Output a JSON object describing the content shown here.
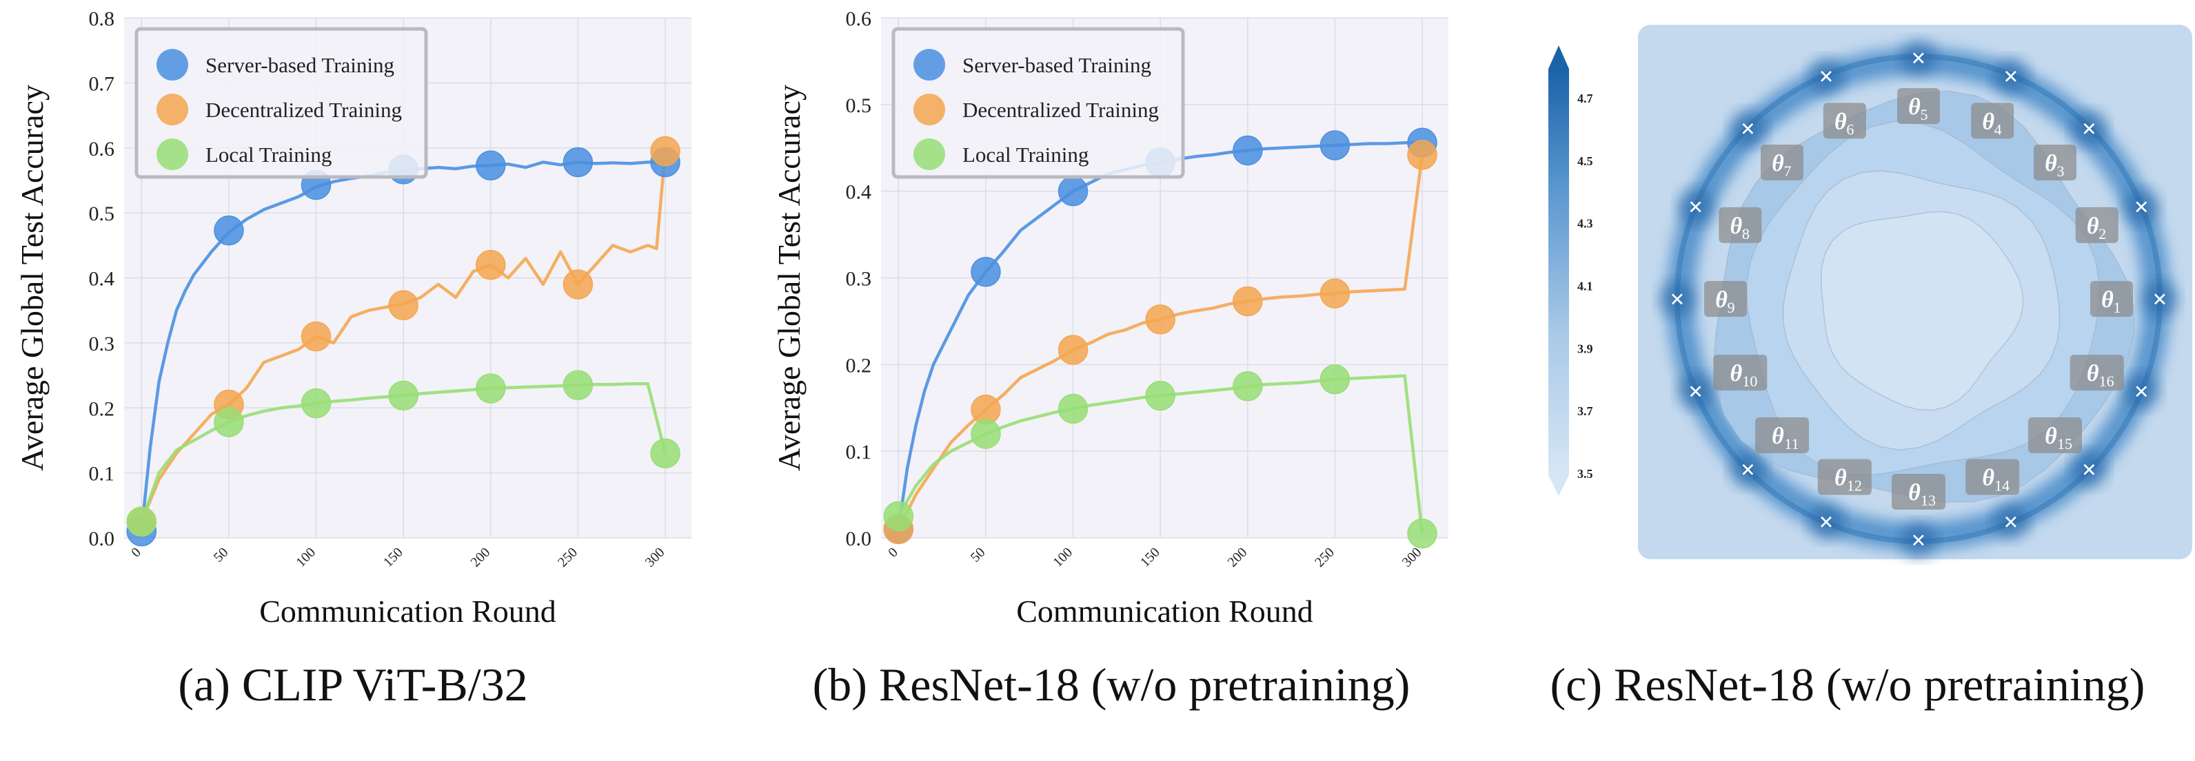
{
  "captions": {
    "a": "(a) CLIP ViT-B/32",
    "b": "(b) ResNet-18 (w/o pretraining)",
    "c": "(c) ResNet-18 (w/o pretraining)"
  },
  "colors": {
    "server": "#4a8fe0",
    "decentralized": "#f5a650",
    "local": "#98de74",
    "plot_bg": "#f2f2f8",
    "contour_dark": "#1b63a8",
    "contour_light": "#d6e6f5"
  },
  "chart_data": [
    {
      "id": "a",
      "type": "line",
      "title": "",
      "xlabel": "Communication Round",
      "ylabel": "Average Global Test Accuracy",
      "xlim": [
        -10,
        315
      ],
      "ylim": [
        0,
        0.8
      ],
      "xticks": [
        0,
        50,
        100,
        150,
        200,
        250,
        300
      ],
      "yticks": [
        0.0,
        0.1,
        0.2,
        0.3,
        0.4,
        0.5,
        0.6,
        0.7,
        0.8
      ],
      "xtick_labels": [
        "0",
        "50",
        "100",
        "150",
        "200",
        "250",
        "300"
      ],
      "ytick_labels": [
        "0.0",
        "0.1",
        "0.2",
        "0.3",
        "0.4",
        "0.5",
        "0.6",
        "0.7",
        "0.8"
      ],
      "grid": true,
      "legend": "top-left",
      "series": [
        {
          "name": "Server-based Training",
          "color_key": "server",
          "x": [
            0,
            5,
            10,
            15,
            20,
            25,
            30,
            40,
            50,
            60,
            70,
            80,
            90,
            100,
            110,
            120,
            130,
            140,
            150,
            160,
            170,
            180,
            190,
            200,
            210,
            220,
            230,
            240,
            250,
            260,
            270,
            280,
            290,
            300
          ],
          "y": [
            0.01,
            0.14,
            0.24,
            0.3,
            0.35,
            0.38,
            0.405,
            0.44,
            0.47,
            0.49,
            0.505,
            0.515,
            0.525,
            0.54,
            0.548,
            0.553,
            0.557,
            0.562,
            0.565,
            0.568,
            0.57,
            0.568,
            0.572,
            0.573,
            0.575,
            0.57,
            0.578,
            0.574,
            0.578,
            0.576,
            0.577,
            0.576,
            0.578,
            0.578
          ],
          "marker_x": [
            0,
            50,
            100,
            150,
            200,
            250,
            300
          ],
          "marker_y": [
            0.01,
            0.473,
            0.543,
            0.567,
            0.573,
            0.578,
            0.578
          ]
        },
        {
          "name": "Decentralized Training",
          "color_key": "decentralized",
          "x": [
            0,
            10,
            20,
            30,
            40,
            50,
            60,
            70,
            80,
            90,
            100,
            110,
            120,
            130,
            140,
            150,
            160,
            170,
            180,
            190,
            200,
            210,
            220,
            230,
            240,
            250,
            260,
            270,
            280,
            290,
            295,
            300
          ],
          "y": [
            0.025,
            0.09,
            0.13,
            0.16,
            0.19,
            0.205,
            0.23,
            0.27,
            0.28,
            0.29,
            0.31,
            0.3,
            0.34,
            0.35,
            0.355,
            0.36,
            0.37,
            0.39,
            0.37,
            0.41,
            0.42,
            0.4,
            0.43,
            0.39,
            0.44,
            0.39,
            0.42,
            0.45,
            0.44,
            0.45,
            0.445,
            0.595
          ],
          "marker_x": [
            0,
            50,
            100,
            150,
            200,
            250,
            300
          ],
          "marker_y": [
            0.025,
            0.205,
            0.31,
            0.358,
            0.42,
            0.39,
            0.595
          ]
        },
        {
          "name": "Local Training",
          "color_key": "local",
          "x": [
            0,
            10,
            20,
            30,
            40,
            50,
            60,
            70,
            80,
            90,
            100,
            110,
            120,
            130,
            140,
            150,
            160,
            170,
            180,
            190,
            200,
            210,
            220,
            230,
            240,
            250,
            260,
            270,
            280,
            290,
            300
          ],
          "y": [
            0.025,
            0.1,
            0.135,
            0.15,
            0.165,
            0.178,
            0.188,
            0.195,
            0.2,
            0.203,
            0.207,
            0.21,
            0.212,
            0.215,
            0.217,
            0.219,
            0.222,
            0.224,
            0.226,
            0.228,
            0.23,
            0.231,
            0.232,
            0.233,
            0.234,
            0.235,
            0.236,
            0.236,
            0.237,
            0.237,
            0.13
          ],
          "marker_x": [
            0,
            50,
            100,
            150,
            200,
            250,
            300
          ],
          "marker_y": [
            0.025,
            0.178,
            0.207,
            0.219,
            0.23,
            0.235,
            0.13
          ]
        }
      ]
    },
    {
      "id": "b",
      "type": "line",
      "title": "",
      "xlabel": "Communication Round",
      "ylabel": "Average Global Test Accuracy",
      "xlim": [
        -10,
        315
      ],
      "ylim": [
        0,
        0.6
      ],
      "xticks": [
        0,
        50,
        100,
        150,
        200,
        250,
        300
      ],
      "yticks": [
        0.0,
        0.1,
        0.2,
        0.3,
        0.4,
        0.5,
        0.6
      ],
      "xtick_labels": [
        "0",
        "50",
        "100",
        "150",
        "200",
        "250",
        "300"
      ],
      "ytick_labels": [
        "0.0",
        "0.1",
        "0.2",
        "0.3",
        "0.4",
        "0.5",
        "0.6"
      ],
      "grid": true,
      "legend": "top-left",
      "series": [
        {
          "name": "Server-based Training",
          "color_key": "server",
          "x": [
            0,
            5,
            10,
            15,
            20,
            30,
            40,
            50,
            60,
            70,
            80,
            90,
            100,
            110,
            120,
            130,
            140,
            150,
            160,
            170,
            180,
            190,
            200,
            210,
            220,
            230,
            240,
            250,
            260,
            270,
            280,
            290,
            300
          ],
          "y": [
            0.01,
            0.08,
            0.13,
            0.17,
            0.2,
            0.24,
            0.28,
            0.307,
            0.33,
            0.355,
            0.37,
            0.385,
            0.4,
            0.41,
            0.42,
            0.425,
            0.43,
            0.433,
            0.437,
            0.44,
            0.442,
            0.445,
            0.447,
            0.449,
            0.45,
            0.451,
            0.452,
            0.453,
            0.454,
            0.455,
            0.455,
            0.456,
            0.456
          ],
          "marker_x": [
            0,
            50,
            100,
            150,
            200,
            250,
            300
          ],
          "marker_y": [
            0.01,
            0.307,
            0.4,
            0.433,
            0.447,
            0.453,
            0.456
          ]
        },
        {
          "name": "Decentralized Training",
          "color_key": "decentralized",
          "x": [
            0,
            10,
            20,
            30,
            40,
            50,
            60,
            70,
            80,
            90,
            100,
            110,
            120,
            130,
            140,
            150,
            160,
            170,
            180,
            190,
            200,
            210,
            220,
            230,
            240,
            250,
            260,
            270,
            280,
            290,
            300
          ],
          "y": [
            0.01,
            0.05,
            0.08,
            0.11,
            0.13,
            0.148,
            0.165,
            0.185,
            0.195,
            0.205,
            0.217,
            0.225,
            0.235,
            0.24,
            0.248,
            0.252,
            0.258,
            0.262,
            0.265,
            0.27,
            0.273,
            0.276,
            0.278,
            0.279,
            0.281,
            0.282,
            0.284,
            0.285,
            0.286,
            0.287,
            0.442
          ],
          "marker_x": [
            0,
            50,
            100,
            150,
            200,
            250,
            300
          ],
          "marker_y": [
            0.01,
            0.148,
            0.217,
            0.252,
            0.273,
            0.282,
            0.442
          ]
        },
        {
          "name": "Local Training",
          "color_key": "local",
          "x": [
            0,
            10,
            20,
            30,
            40,
            50,
            60,
            70,
            80,
            90,
            100,
            110,
            120,
            130,
            140,
            150,
            160,
            170,
            180,
            190,
            200,
            210,
            220,
            230,
            240,
            250,
            260,
            270,
            280,
            290,
            300
          ],
          "y": [
            0.025,
            0.06,
            0.085,
            0.1,
            0.11,
            0.12,
            0.128,
            0.135,
            0.14,
            0.145,
            0.149,
            0.153,
            0.156,
            0.159,
            0.162,
            0.164,
            0.166,
            0.168,
            0.17,
            0.172,
            0.175,
            0.177,
            0.178,
            0.179,
            0.181,
            0.183,
            0.184,
            0.185,
            0.186,
            0.187,
            0.005
          ],
          "marker_x": [
            0,
            50,
            100,
            150,
            200,
            250,
            300
          ],
          "marker_y": [
            0.025,
            0.12,
            0.149,
            0.164,
            0.175,
            0.183,
            0.005
          ]
        }
      ]
    },
    {
      "id": "c",
      "type": "heatmap",
      "title": "",
      "description_free": true,
      "colorbar_ticks": [
        "4.7",
        "4.5",
        "4.3",
        "4.1",
        "3.9",
        "3.7",
        "3.5"
      ],
      "colorbar_range": [
        3.5,
        4.8
      ],
      "points": [
        {
          "label": "1",
          "angle_deg": 0
        },
        {
          "label": "2",
          "angle_deg": 22.5
        },
        {
          "label": "3",
          "angle_deg": 45
        },
        {
          "label": "4",
          "angle_deg": 67.5
        },
        {
          "label": "5",
          "angle_deg": 90
        },
        {
          "label": "6",
          "angle_deg": 112.5
        },
        {
          "label": "7",
          "angle_deg": 135
        },
        {
          "label": "8",
          "angle_deg": 157.5
        },
        {
          "label": "9",
          "angle_deg": 180
        },
        {
          "label": "10",
          "angle_deg": 202.5
        },
        {
          "label": "11",
          "angle_deg": 225
        },
        {
          "label": "12",
          "angle_deg": 247.5
        },
        {
          "label": "13",
          "angle_deg": 270
        },
        {
          "label": "14",
          "angle_deg": 292.5
        },
        {
          "label": "15",
          "angle_deg": 315
        },
        {
          "label": "16",
          "angle_deg": 337.5
        }
      ],
      "point_symbol": "θ",
      "marker_symbol": "×"
    }
  ]
}
